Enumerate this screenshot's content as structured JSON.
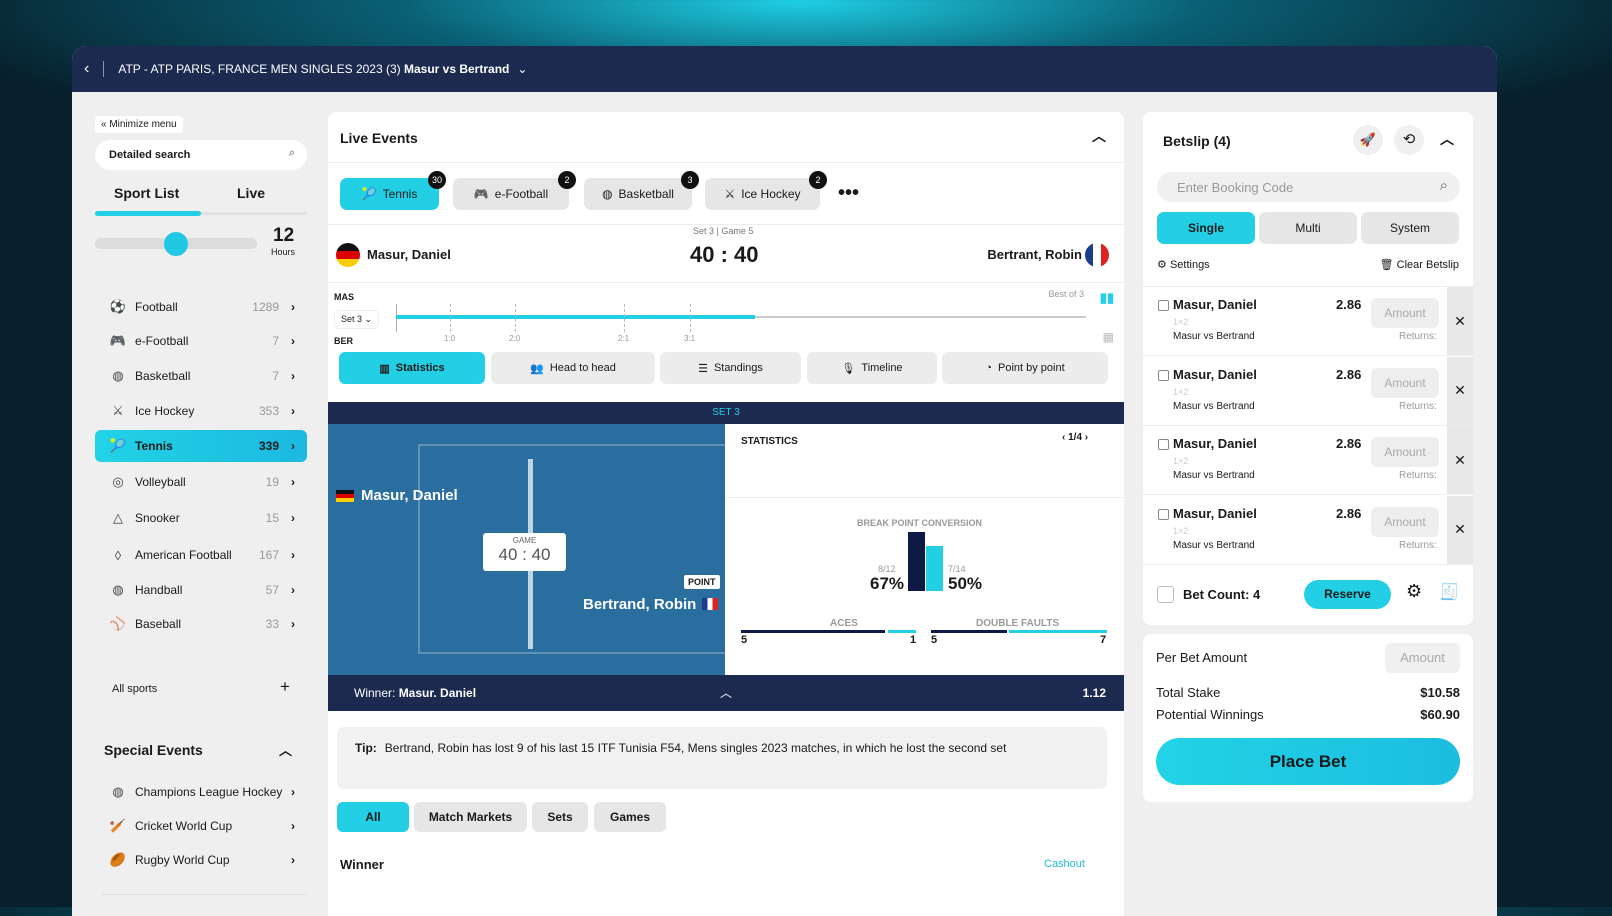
{
  "header": {
    "breadcrumb": "ATP - ATP PARIS, FRANCE MEN SINGLES 2023 (3)",
    "match": "Masur vs Bertrand"
  },
  "sidebar": {
    "minimize": "Minimize menu",
    "search_placeholder": "Detailed search",
    "tabs": [
      "Sport List",
      "Live"
    ],
    "hours_value": "12",
    "hours_label": "Hours",
    "slider_fraction": 0.5,
    "sports": [
      {
        "icon": "football-icon",
        "label": "Football",
        "count": "1289"
      },
      {
        "icon": "gamepad-icon",
        "label": "e-Football",
        "count": "7"
      },
      {
        "icon": "basketball-icon",
        "label": "Basketball",
        "count": "7"
      },
      {
        "icon": "hockey-icon",
        "label": "Ice Hockey",
        "count": "353"
      },
      {
        "icon": "tennis-icon",
        "label": "Tennis",
        "count": "339"
      },
      {
        "icon": "volleyball-icon",
        "label": "Volleyball",
        "count": "19"
      },
      {
        "icon": "snooker-icon",
        "label": "Snooker",
        "count": "15"
      },
      {
        "icon": "american-football-icon",
        "label": "American Football",
        "count": "167"
      },
      {
        "icon": "handball-icon",
        "label": "Handball",
        "count": "57"
      },
      {
        "icon": "baseball-icon",
        "label": "Baseball",
        "count": "33"
      }
    ],
    "all_sports": "All sports",
    "special_title": "Special Events",
    "special": [
      {
        "label": "Champions League Hockey"
      },
      {
        "label": "Cricket World Cup"
      },
      {
        "label": "Rugby World Cup"
      }
    ]
  },
  "live": {
    "title": "Live Events",
    "sports": [
      {
        "label": "Tennis",
        "count": "30"
      },
      {
        "label": "e-Football",
        "count": "2"
      },
      {
        "label": "Basketball",
        "count": "3"
      },
      {
        "label": "Ice Hockey",
        "count": "2"
      }
    ],
    "set_game": "Set 3 | Game 5",
    "home": "Masur, Daniel",
    "away": "Bertrant, Robin",
    "score": "40 : 40",
    "timeline": {
      "home_abbr": "MAS",
      "away_abbr": "BER",
      "set_select": "Set 3",
      "best_of": "Best of 3",
      "marks": [
        "1:0",
        "2:0",
        "2:1",
        "3:1"
      ],
      "progress": 0.52
    },
    "tabs": [
      "Statistics",
      "Head to head",
      "Standings",
      "Timeline",
      "Point by point"
    ],
    "set_banner": "SET 3",
    "court": {
      "home": "Masur, Daniel",
      "away": "Bertrand, Robin",
      "game_label": "GAME",
      "game_score": "40 : 40",
      "point": "POINT"
    },
    "stats": {
      "title": "STATISTICS",
      "page": "1/4",
      "bp_title": "BREAK POINT CONVERSION",
      "home_frac": "8/12",
      "home_pct": "67%",
      "away_frac": "7/14",
      "away_pct": "50%",
      "aces_label": "ACES",
      "aces_home": "5",
      "aces_away": "1",
      "df_label": "DOUBLE FAULTS",
      "df_home": "5",
      "df_away": "7"
    },
    "winner_bar": {
      "label": "Winner:",
      "name": "Masur. Daniel",
      "odds": "1.12"
    },
    "tip": {
      "label": "Tip:",
      "text": "Bertrand, Robin has lost 9 of his last 15 ITF Tunisia F54, Mens singles 2023 matches, in which he lost the second set"
    },
    "market_tabs": [
      "All",
      "Match Markets",
      "Sets",
      "Games"
    ],
    "market_title": "Winner",
    "cashout": "Cashout"
  },
  "betslip": {
    "title": "Betslip (4)",
    "booking_placeholder": "Enter Booking Code",
    "types": [
      "Single",
      "Multi",
      "System"
    ],
    "settings": "Settings",
    "clear": "Clear Betslip",
    "bets": [
      {
        "name": "Masur, Daniel",
        "market": "1×2",
        "event": "Masur vs Bertrand",
        "odds": "2.86",
        "amount": "Amount",
        "returns": "Returns:"
      },
      {
        "name": "Masur, Daniel",
        "market": "1×2",
        "event": "Masur vs Bertrand",
        "odds": "2.86",
        "amount": "Amount",
        "returns": "Returns:"
      },
      {
        "name": "Masur, Daniel",
        "market": "1×2",
        "event": "Masur vs Bertrand",
        "odds": "2.86",
        "amount": "Amount",
        "returns": "Returns:"
      },
      {
        "name": "Masur, Daniel",
        "market": "1×2",
        "event": "Masur vs Bertrand",
        "odds": "2.86",
        "amount": "Amount",
        "returns": "Returns:"
      }
    ],
    "bet_count": "Bet Count: 4",
    "reserve": "Reserve",
    "per_bet": "Per Bet Amount",
    "per_bet_placeholder": "Amount",
    "total_stake_label": "Total Stake",
    "total_stake": "$10.58",
    "potential_label": "Potential Winnings",
    "potential": "$60.90",
    "place_bet": "Place Bet"
  },
  "colors": {
    "accent": "#22cfe4",
    "navy": "#1c2a50",
    "court": "#2a6ea0"
  }
}
